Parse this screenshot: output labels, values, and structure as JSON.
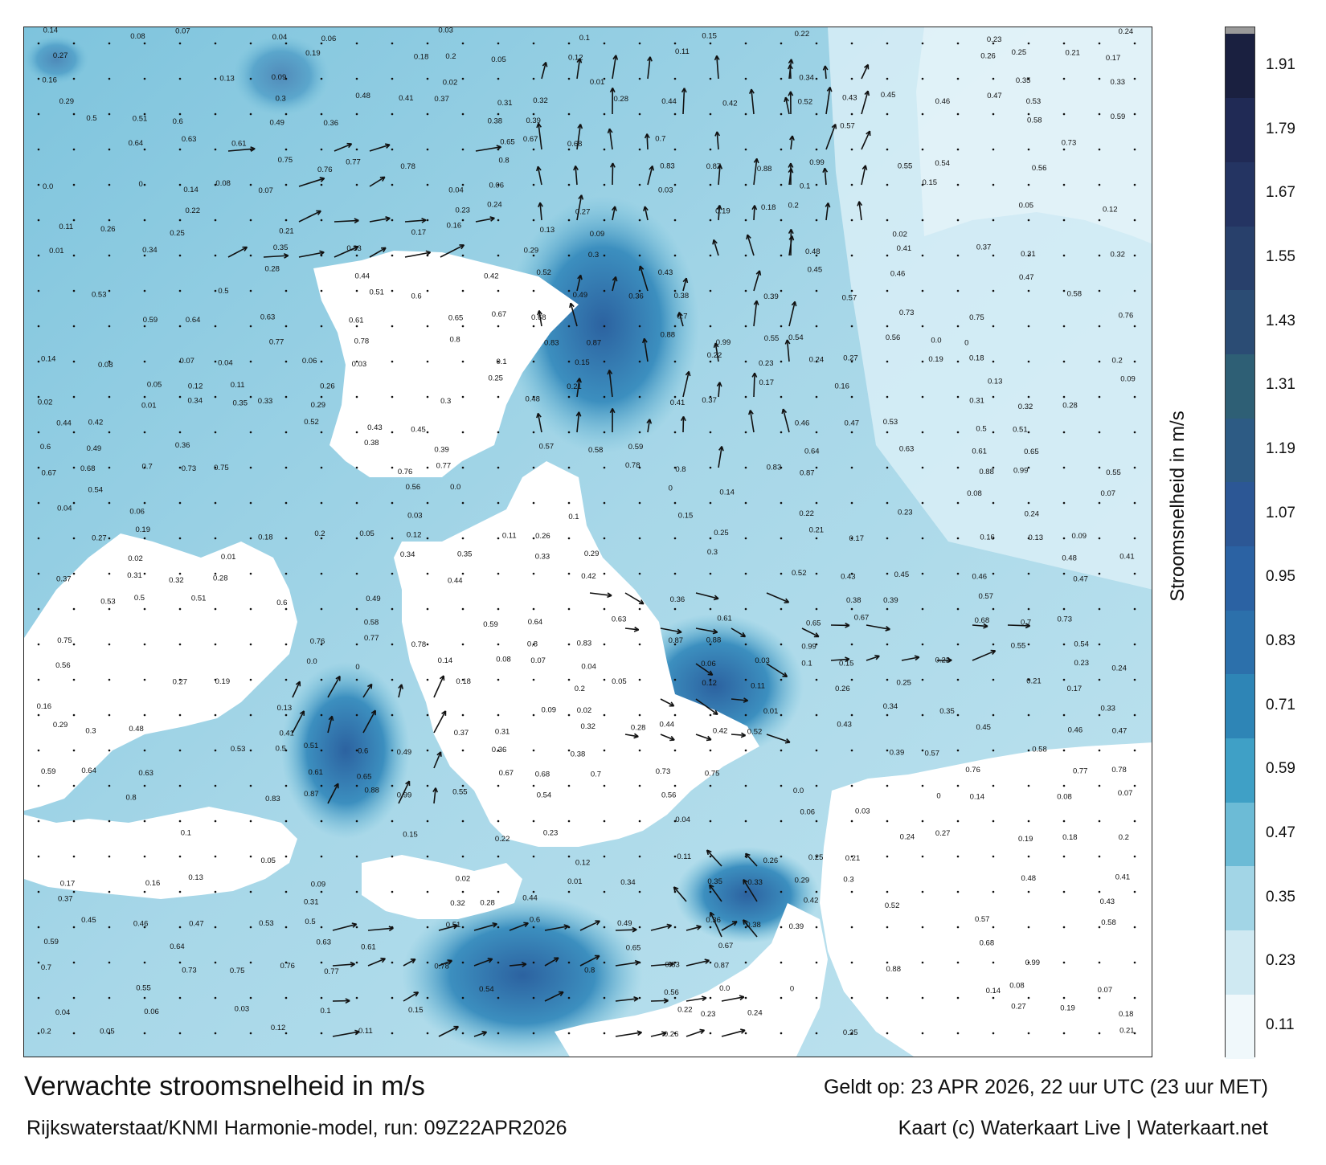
{
  "title": "Verwachte stroomsnelheid in m/s",
  "subtitle": "Rijkswaterstaat/KNMI Harmonie-model, run: 09Z22APR2026",
  "valid_time": "Geldt op: 23 APR 2026, 22 uur UTC (23 uur MET)",
  "credit": "Kaart (c) Waterkaart Live | Waterkaart.net",
  "colorbar": {
    "title": "Stroomsnelheid in m/s",
    "tick_labels": [
      "1.91",
      "1.79",
      "1.67",
      "1.55",
      "1.43",
      "1.31",
      "1.19",
      "1.07",
      "0.95",
      "0.83",
      "0.71",
      "0.59",
      "0.47",
      "0.35",
      "0.23",
      "0.11"
    ],
    "levels": [
      {
        "from": 0.05,
        "to": 0.17,
        "color": "#f0f8fb"
      },
      {
        "from": 0.17,
        "to": 0.29,
        "color": "#cfe9f2"
      },
      {
        "from": 0.29,
        "to": 0.41,
        "color": "#a2d5e6"
      },
      {
        "from": 0.41,
        "to": 0.53,
        "color": "#6cbbd6"
      },
      {
        "from": 0.53,
        "to": 0.65,
        "color": "#3fa0c6"
      },
      {
        "from": 0.65,
        "to": 0.77,
        "color": "#2e85b6"
      },
      {
        "from": 0.77,
        "to": 0.89,
        "color": "#2c70ab"
      },
      {
        "from": 0.89,
        "to": 1.01,
        "color": "#2b62a3"
      },
      {
        "from": 1.01,
        "to": 1.13,
        "color": "#2c5795"
      },
      {
        "from": 1.13,
        "to": 1.25,
        "color": "#2d5b84"
      },
      {
        "from": 1.25,
        "to": 1.37,
        "color": "#2e5f75"
      },
      {
        "from": 1.37,
        "to": 1.49,
        "color": "#2b4c74"
      },
      {
        "from": 1.49,
        "to": 1.61,
        "color": "#28406b"
      },
      {
        "from": 1.61,
        "to": 1.73,
        "color": "#243462"
      },
      {
        "from": 1.73,
        "to": 1.85,
        "color": "#202a55"
      },
      {
        "from": 1.85,
        "to": 1.97,
        "color": "#1a2040"
      }
    ],
    "top_cap_color": "#9a9a9a"
  },
  "map": {
    "water_color": "#9fd2e4",
    "land_color": "#ffffff",
    "value_labels": [
      {
        "v": "0.14"
      },
      {
        "v": "0.08"
      },
      {
        "v": "0.07"
      },
      {
        "v": "0.04"
      },
      {
        "v": "0.06"
      },
      {
        "v": "0.03"
      },
      {
        "v": "0.1"
      },
      {
        "v": "0.15"
      },
      {
        "v": "0.22"
      },
      {
        "v": "0.23"
      },
      {
        "v": "0.24"
      },
      {
        "v": "0.27"
      },
      {
        "v": "0.19"
      },
      {
        "v": "0.18"
      },
      {
        "v": "0.2"
      },
      {
        "v": "0.05"
      },
      {
        "v": "0.12"
      },
      {
        "v": "0.11"
      },
      {
        "v": "0.26"
      },
      {
        "v": "0.25"
      },
      {
        "v": "0.21"
      },
      {
        "v": "0.17"
      },
      {
        "v": "0.16"
      },
      {
        "v": "0.13"
      },
      {
        "v": "0.09"
      },
      {
        "v": "0.02"
      },
      {
        "v": "0.01"
      },
      {
        "v": "0.34"
      },
      {
        "v": "0.35"
      },
      {
        "v": "0.33"
      },
      {
        "v": "0.29"
      },
      {
        "v": "0.3"
      },
      {
        "v": "0.48"
      },
      {
        "v": "0.41"
      },
      {
        "v": "0.37"
      },
      {
        "v": "0.31"
      },
      {
        "v": "0.32"
      },
      {
        "v": "0.28"
      },
      {
        "v": "0.44"
      },
      {
        "v": "0.42"
      },
      {
        "v": "0.52"
      },
      {
        "v": "0.43"
      },
      {
        "v": "0.45"
      },
      {
        "v": "0.46"
      },
      {
        "v": "0.47"
      },
      {
        "v": "0.53"
      },
      {
        "v": "0.5"
      },
      {
        "v": "0.51"
      },
      {
        "v": "0.6"
      },
      {
        "v": "0.49"
      },
      {
        "v": "0.36"
      },
      {
        "v": "0.38"
      },
      {
        "v": "0.39"
      },
      {
        "v": "0.57"
      },
      {
        "v": "0.58"
      },
      {
        "v": "0.59"
      },
      {
        "v": "0.64"
      },
      {
        "v": "0.63"
      },
      {
        "v": "0.61"
      },
      {
        "v": "0.65"
      },
      {
        "v": "0.67"
      },
      {
        "v": "0.68"
      },
      {
        "v": "0.7"
      },
      {
        "v": "0.73"
      },
      {
        "v": "0.75"
      },
      {
        "v": "0.76"
      },
      {
        "v": "0.77"
      },
      {
        "v": "0.78"
      },
      {
        "v": "0.8"
      },
      {
        "v": "0.83"
      },
      {
        "v": "0.87"
      },
      {
        "v": "0.88"
      },
      {
        "v": "0.99"
      },
      {
        "v": "0.55"
      },
      {
        "v": "0.54"
      },
      {
        "v": "0.56"
      },
      {
        "v": "0.0"
      },
      {
        "v": "0"
      }
    ]
  }
}
